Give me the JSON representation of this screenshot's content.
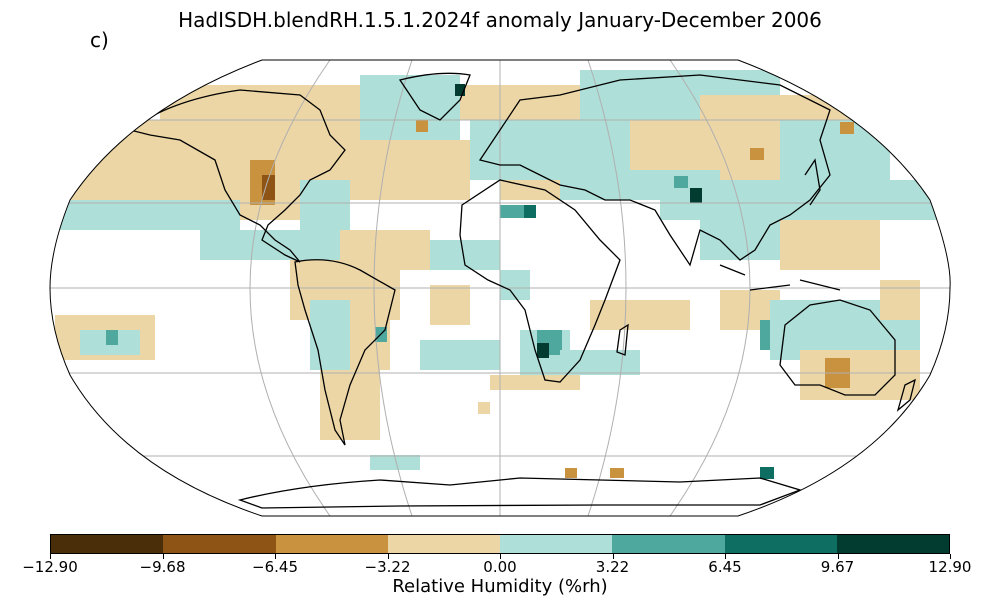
{
  "title": "HadISDH.blendRH.1.5.1.2024f anomaly January-December 2006",
  "panel_label": "c)",
  "colorbar": {
    "label": "Relative Humidity (%rh)",
    "ticks": [
      "−12.90",
      "−9.68",
      "−6.45",
      "−3.22",
      "0.00",
      "3.22",
      "6.45",
      "9.67",
      "12.90"
    ],
    "colors": [
      "#4a2e09",
      "#8d5416",
      "#c8923f",
      "#ecd6a6",
      "#aedfd8",
      "#4fa89e",
      "#0e6e62",
      "#023b30"
    ]
  },
  "map": {
    "projection": "robinson",
    "gridlines": true,
    "coastlines": true
  }
}
